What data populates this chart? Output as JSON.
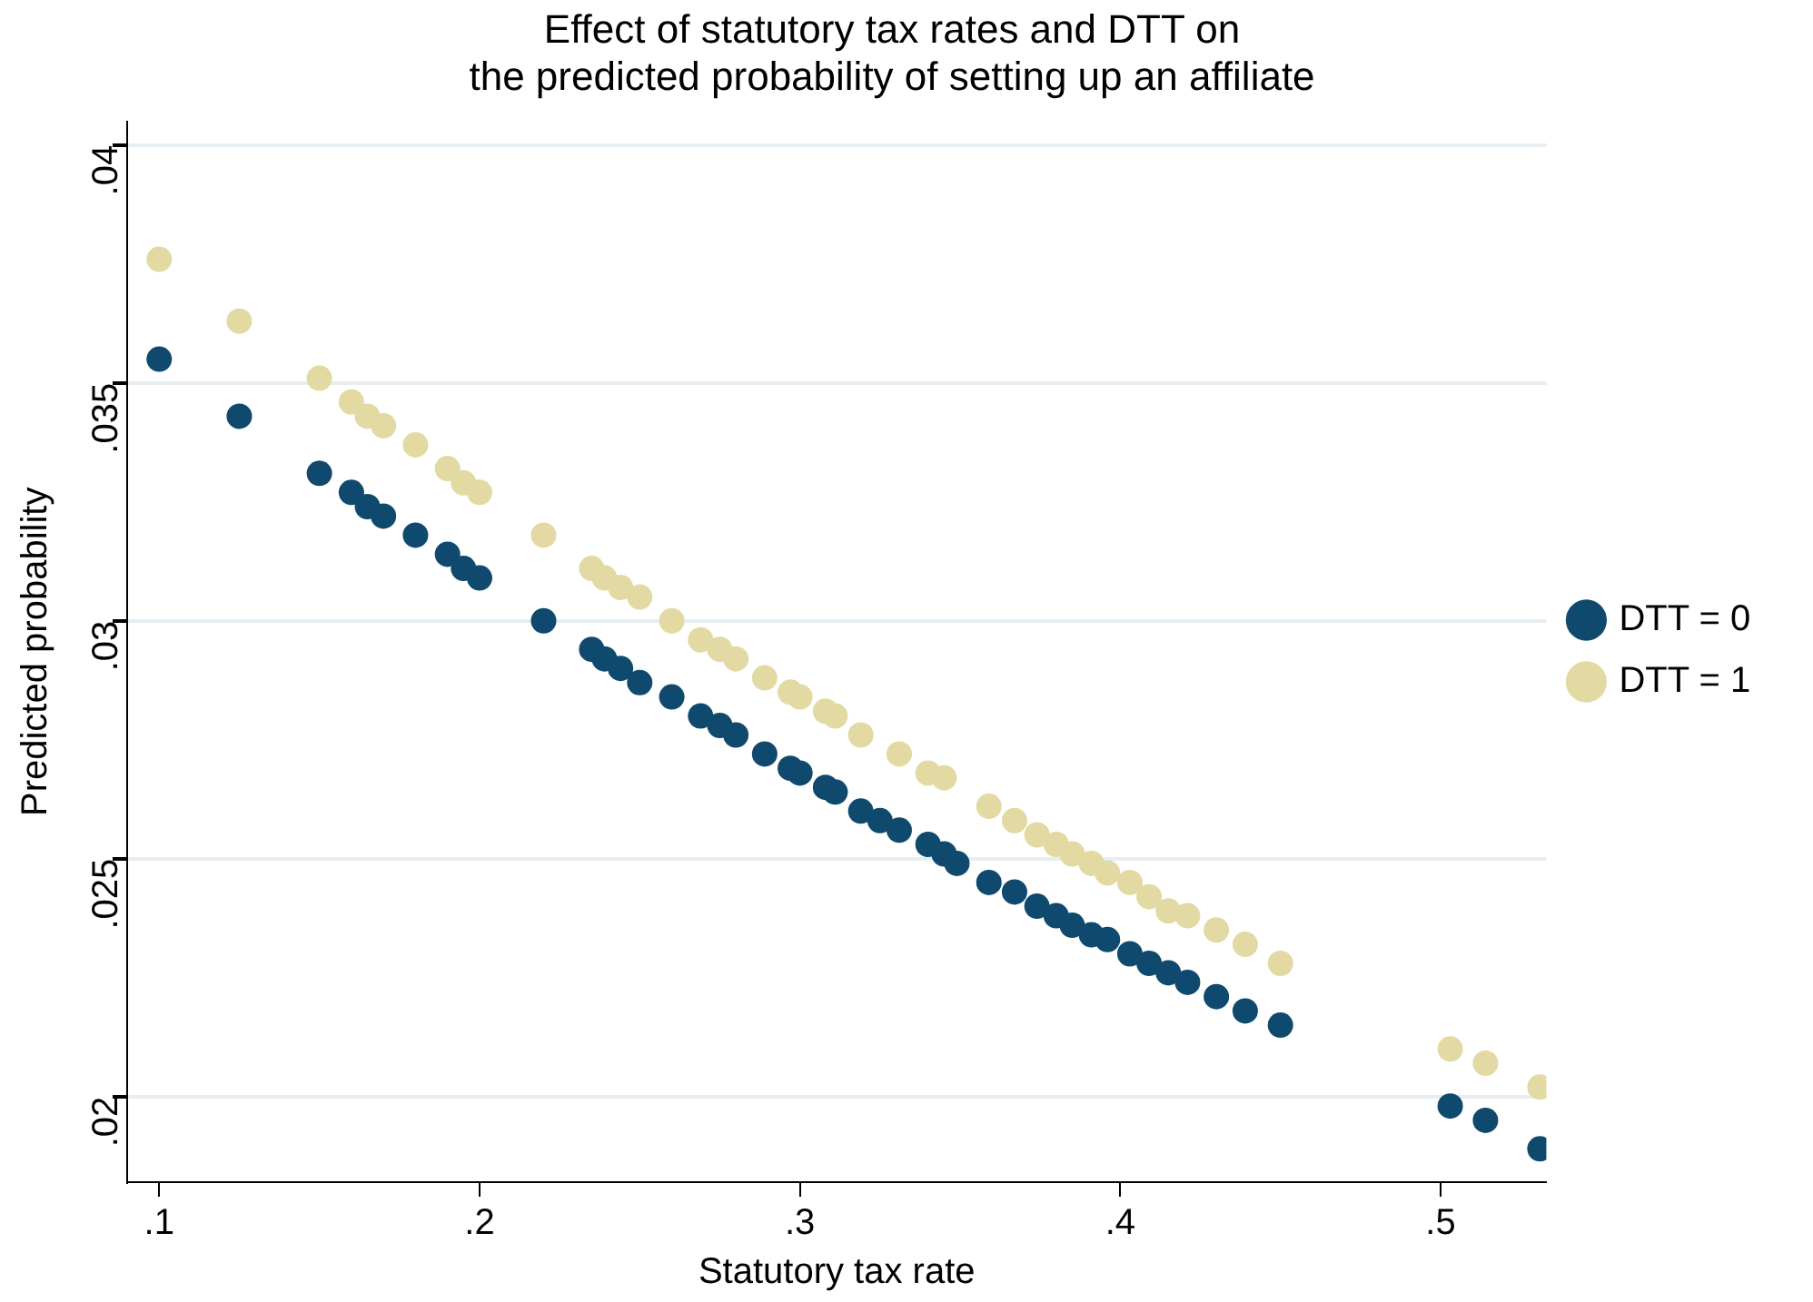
{
  "chart_data": {
    "type": "scatter",
    "title": "Effect of statutory tax rates and DTT on\nthe predicted probability of setting up an affiliate",
    "xlabel": "Statutory tax rate",
    "ylabel": "Predicted probability",
    "xlim": [
      0.09,
      0.533
    ],
    "ylim": [
      0.0182,
      0.0405
    ],
    "xticks": [
      {
        "value": 0.1,
        "label": ".1"
      },
      {
        "value": 0.2,
        "label": ".2"
      },
      {
        "value": 0.3,
        "label": ".3"
      },
      {
        "value": 0.4,
        "label": ".4"
      },
      {
        "value": 0.5,
        "label": ".5"
      }
    ],
    "yticks": [
      {
        "value": 0.02,
        "label": ".02"
      },
      {
        "value": 0.025,
        "label": ".025"
      },
      {
        "value": 0.03,
        "label": ".03"
      },
      {
        "value": 0.035,
        "label": ".035"
      },
      {
        "value": 0.04,
        "label": ".04"
      }
    ],
    "grid": "y",
    "legend": "right",
    "marker": "circle",
    "series": [
      {
        "name": "DTT = 0",
        "color": "#0f4a6e",
        "x": [
          0.1,
          0.125,
          0.15,
          0.16,
          0.165,
          0.17,
          0.18,
          0.19,
          0.195,
          0.2,
          0.22,
          0.235,
          0.239,
          0.244,
          0.25,
          0.26,
          0.269,
          0.275,
          0.28,
          0.289,
          0.297,
          0.3,
          0.308,
          0.311,
          0.319,
          0.325,
          0.331,
          0.34,
          0.345,
          0.349,
          0.359,
          0.367,
          0.374,
          0.38,
          0.385,
          0.391,
          0.396,
          0.403,
          0.409,
          0.415,
          0.421,
          0.43,
          0.439,
          0.45,
          0.503,
          0.514,
          0.531
        ],
        "values": [
          0.0355,
          0.0343,
          0.0331,
          0.0327,
          0.0324,
          0.0322,
          0.0318,
          0.0314,
          0.0311,
          0.0309,
          0.03,
          0.0294,
          0.0292,
          0.029,
          0.0287,
          0.0284,
          0.028,
          0.0278,
          0.0276,
          0.0272,
          0.0269,
          0.0268,
          0.0265,
          0.0264,
          0.026,
          0.0258,
          0.0256,
          0.0253,
          0.0251,
          0.0249,
          0.0245,
          0.0243,
          0.024,
          0.0238,
          0.0236,
          0.0234,
          0.0233,
          0.023,
          0.0228,
          0.0226,
          0.0224,
          0.0221,
          0.0218,
          0.0215,
          0.0198,
          0.0195,
          0.0189
        ]
      },
      {
        "name": "DTT = 1",
        "color": "#e3d9a3",
        "x": [
          0.1,
          0.125,
          0.15,
          0.16,
          0.165,
          0.17,
          0.18,
          0.19,
          0.195,
          0.2,
          0.22,
          0.235,
          0.239,
          0.244,
          0.25,
          0.26,
          0.269,
          0.275,
          0.28,
          0.289,
          0.297,
          0.3,
          0.308,
          0.311,
          0.319,
          0.331,
          0.34,
          0.345,
          0.359,
          0.367,
          0.374,
          0.38,
          0.385,
          0.391,
          0.396,
          0.403,
          0.409,
          0.415,
          0.421,
          0.43,
          0.439,
          0.45,
          0.503,
          0.514,
          0.531
        ],
        "values": [
          0.0376,
          0.0363,
          0.0351,
          0.0346,
          0.0343,
          0.0341,
          0.0337,
          0.0332,
          0.0329,
          0.0327,
          0.0318,
          0.0311,
          0.0309,
          0.0307,
          0.0305,
          0.03,
          0.0296,
          0.0294,
          0.0292,
          0.0288,
          0.0285,
          0.0284,
          0.0281,
          0.028,
          0.0276,
          0.0272,
          0.0268,
          0.0267,
          0.0261,
          0.0258,
          0.0255,
          0.0253,
          0.0251,
          0.0249,
          0.0247,
          0.0245,
          0.0242,
          0.0239,
          0.0238,
          0.0235,
          0.0232,
          0.0228,
          0.021,
          0.0207,
          0.0202
        ]
      }
    ]
  }
}
